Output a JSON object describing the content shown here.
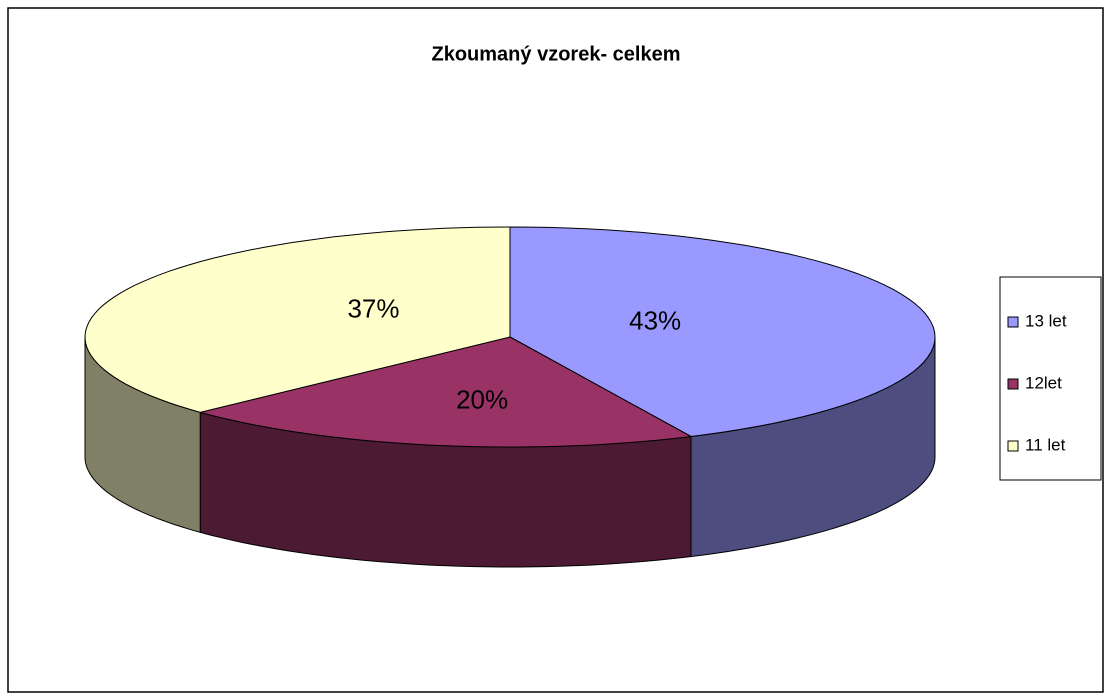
{
  "chart_data": {
    "type": "pie3d",
    "title": "Zkoumaný vzorek- celkem",
    "categories": [
      "13 let",
      "12let",
      "11 let"
    ],
    "values": [
      43,
      20,
      37
    ],
    "value_labels": [
      "43%",
      "20%",
      "37%"
    ],
    "colors": [
      "#9999ff",
      "#993366",
      "#ffffcc"
    ],
    "legend": "right"
  }
}
